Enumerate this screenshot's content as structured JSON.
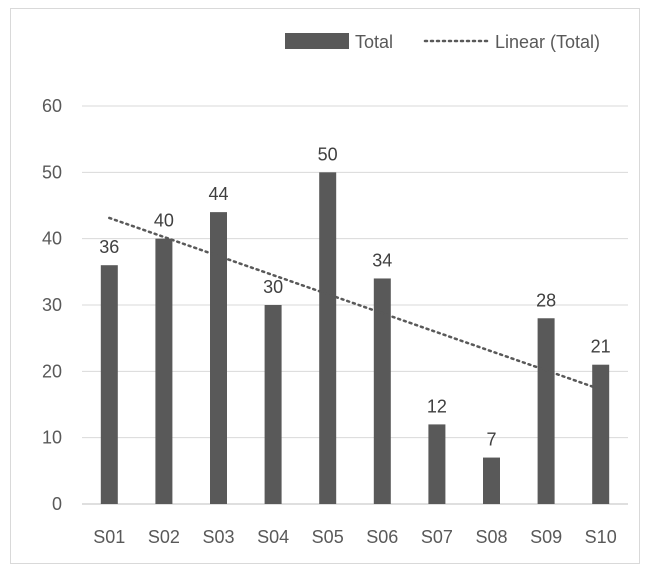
{
  "chart_data": {
    "type": "bar",
    "title": "",
    "xlabel": "",
    "ylabel": "",
    "categories": [
      "S01",
      "S02",
      "S03",
      "S04",
      "S05",
      "S06",
      "S07",
      "S08",
      "S09",
      "S10"
    ],
    "series": [
      {
        "name": "Total",
        "values": [
          36,
          40,
          44,
          30,
          50,
          34,
          12,
          7,
          28,
          21
        ],
        "color": "#595959"
      }
    ],
    "trendline": {
      "name": "Linear (Total)",
      "type": "linear",
      "style": "dotted",
      "color": "#595959"
    },
    "ylim": [
      0,
      60
    ],
    "yticks": [
      0,
      10,
      20,
      30,
      40,
      50,
      60
    ],
    "grid": true,
    "data_labels": true,
    "legend_position": "top-right"
  }
}
